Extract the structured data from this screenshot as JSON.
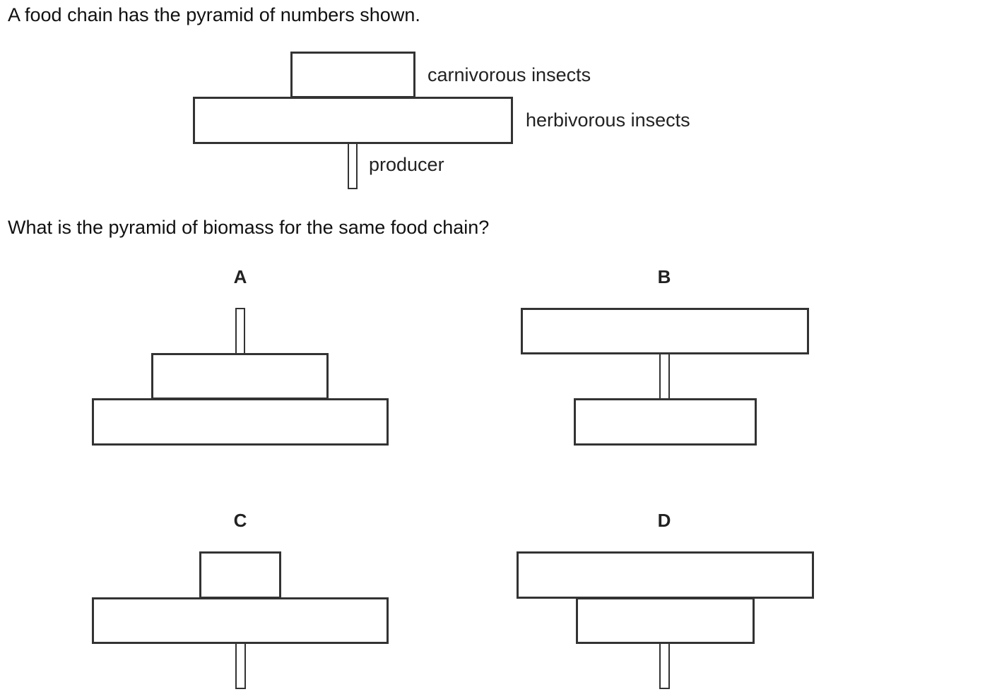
{
  "question": {
    "intro": "A food chain has the pyramid of numbers shown.",
    "prompt": "What is the pyramid of biomass for the same food chain?"
  },
  "pyramid_of_numbers": {
    "levels": [
      {
        "label": "carnivorous insects"
      },
      {
        "label": "herbivorous insects"
      },
      {
        "label": "producer"
      }
    ]
  },
  "options": [
    {
      "letter": "A"
    },
    {
      "letter": "B"
    },
    {
      "letter": "C"
    },
    {
      "letter": "D"
    }
  ]
}
